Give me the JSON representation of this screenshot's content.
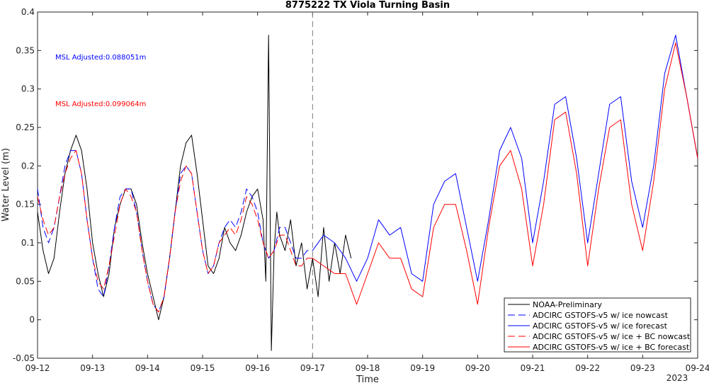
{
  "chart_data": {
    "type": "line",
    "title": "8775222 TX Viola Turning Basin",
    "xlabel": "Time",
    "ylabel": "Water Level (m)",
    "year_label": "2023",
    "xlim": [
      0,
      12
    ],
    "ylim": [
      -0.05,
      0.4
    ],
    "x_ticks": [
      "09-12",
      "09-13",
      "09-14",
      "09-15",
      "09-16",
      "09-17",
      "09-18",
      "09-19",
      "09-20",
      "09-21",
      "09-22",
      "09-23",
      "09-24"
    ],
    "y_ticks": [
      -0.05,
      0,
      0.05,
      0.1,
      0.15,
      0.2,
      0.25,
      0.3,
      0.35,
      0.4
    ],
    "forecast_start_x": 5,
    "grid": false,
    "legend_position": "bottom-right",
    "annotations": [
      {
        "text": "MSL Adjusted:0.088051m",
        "color": "#0000ff"
      },
      {
        "text": "MSL Adjusted:0.099064m",
        "color": "#ff0000"
      }
    ],
    "series": [
      {
        "name": "NOAA-Preliminary",
        "color": "#000000",
        "dash": false,
        "width": 1,
        "x": [
          0,
          0.1,
          0.2,
          0.3,
          0.4,
          0.5,
          0.6,
          0.7,
          0.8,
          0.9,
          1.0,
          1.1,
          1.2,
          1.3,
          1.4,
          1.5,
          1.6,
          1.7,
          1.8,
          1.9,
          2.0,
          2.1,
          2.2,
          2.3,
          2.4,
          2.5,
          2.6,
          2.7,
          2.8,
          2.9,
          3.0,
          3.1,
          3.2,
          3.3,
          3.4,
          3.5,
          3.6,
          3.7,
          3.8,
          3.9,
          4.0,
          4.1,
          4.15,
          4.2,
          4.25,
          4.3,
          4.35,
          4.4,
          4.5,
          4.6,
          4.7,
          4.8,
          4.9,
          5.0,
          5.1,
          5.2,
          5.3,
          5.4,
          5.5,
          5.6,
          5.7
        ],
        "y": [
          0.14,
          0.09,
          0.06,
          0.08,
          0.14,
          0.19,
          0.22,
          0.24,
          0.22,
          0.17,
          0.1,
          0.06,
          0.03,
          0.06,
          0.12,
          0.15,
          0.17,
          0.17,
          0.15,
          0.1,
          0.06,
          0.03,
          0.0,
          0.03,
          0.08,
          0.14,
          0.2,
          0.23,
          0.24,
          0.19,
          0.13,
          0.07,
          0.06,
          0.08,
          0.12,
          0.1,
          0.09,
          0.11,
          0.14,
          0.16,
          0.17,
          0.13,
          0.05,
          0.37,
          -0.04,
          0.09,
          0.14,
          0.11,
          0.09,
          0.13,
          0.07,
          0.1,
          0.04,
          0.08,
          0.03,
          0.12,
          0.05,
          0.1,
          0.06,
          0.11,
          0.08
        ]
      },
      {
        "name": "ADCIRC GSTOFS-v5 w/ ice nowcast",
        "color": "#0000ff",
        "dash": true,
        "width": 1,
        "x": [
          0,
          0.1,
          0.2,
          0.3,
          0.4,
          0.5,
          0.6,
          0.7,
          0.8,
          0.9,
          1.0,
          1.1,
          1.2,
          1.3,
          1.4,
          1.5,
          1.6,
          1.7,
          1.8,
          1.9,
          2.0,
          2.1,
          2.2,
          2.3,
          2.4,
          2.5,
          2.6,
          2.7,
          2.8,
          2.9,
          3.0,
          3.1,
          3.2,
          3.3,
          3.4,
          3.5,
          3.6,
          3.7,
          3.8,
          3.9,
          4.0,
          4.1,
          4.2,
          4.3,
          4.4,
          4.5,
          4.6,
          4.7,
          4.8,
          4.9,
          5.0
        ],
        "y": [
          0.17,
          0.12,
          0.1,
          0.12,
          0.16,
          0.2,
          0.22,
          0.22,
          0.19,
          0.13,
          0.08,
          0.04,
          0.03,
          0.07,
          0.12,
          0.16,
          0.17,
          0.17,
          0.14,
          0.09,
          0.05,
          0.02,
          0.01,
          0.03,
          0.08,
          0.14,
          0.19,
          0.2,
          0.19,
          0.14,
          0.09,
          0.06,
          0.07,
          0.1,
          0.12,
          0.13,
          0.12,
          0.14,
          0.17,
          0.16,
          0.14,
          0.1,
          0.08,
          0.09,
          0.12,
          0.12,
          0.1,
          0.08,
          0.08,
          0.09,
          0.09
        ]
      },
      {
        "name": "ADCIRC GSTOFS-v5 w/ ice forecast",
        "color": "#0000ff",
        "dash": false,
        "width": 1,
        "x": [
          5.0,
          5.2,
          5.4,
          5.6,
          5.8,
          6.0,
          6.2,
          6.4,
          6.6,
          6.8,
          7.0,
          7.2,
          7.4,
          7.6,
          7.8,
          8.0,
          8.2,
          8.4,
          8.6,
          8.8,
          9.0,
          9.2,
          9.4,
          9.6,
          9.8,
          10.0,
          10.2,
          10.4,
          10.6,
          10.8,
          11.0,
          11.2,
          11.4,
          11.6,
          11.8,
          12.0
        ],
        "y": [
          0.09,
          0.11,
          0.1,
          0.08,
          0.05,
          0.08,
          0.13,
          0.11,
          0.12,
          0.06,
          0.05,
          0.15,
          0.18,
          0.19,
          0.12,
          0.05,
          0.13,
          0.22,
          0.25,
          0.21,
          0.1,
          0.18,
          0.28,
          0.29,
          0.21,
          0.1,
          0.19,
          0.28,
          0.29,
          0.18,
          0.12,
          0.2,
          0.32,
          0.37,
          0.29,
          0.21
        ]
      },
      {
        "name": "ADCIRC GSTOFS-v5 w/ ice + BC nowcast",
        "color": "#ff0000",
        "dash": true,
        "width": 1,
        "x": [
          0,
          0.1,
          0.2,
          0.3,
          0.4,
          0.5,
          0.6,
          0.7,
          0.8,
          0.9,
          1.0,
          1.1,
          1.2,
          1.3,
          1.4,
          1.5,
          1.6,
          1.7,
          1.8,
          1.9,
          2.0,
          2.1,
          2.2,
          2.3,
          2.4,
          2.5,
          2.6,
          2.7,
          2.8,
          2.9,
          3.0,
          3.1,
          3.2,
          3.3,
          3.4,
          3.5,
          3.6,
          3.7,
          3.8,
          3.9,
          4.0,
          4.1,
          4.2,
          4.3,
          4.4,
          4.5,
          4.6,
          4.7,
          4.8,
          4.9,
          5.0
        ],
        "y": [
          0.16,
          0.13,
          0.11,
          0.12,
          0.16,
          0.19,
          0.21,
          0.22,
          0.19,
          0.13,
          0.08,
          0.05,
          0.04,
          0.07,
          0.11,
          0.15,
          0.17,
          0.16,
          0.14,
          0.09,
          0.05,
          0.02,
          0.01,
          0.03,
          0.08,
          0.14,
          0.18,
          0.2,
          0.19,
          0.14,
          0.09,
          0.06,
          0.07,
          0.1,
          0.11,
          0.12,
          0.11,
          0.13,
          0.16,
          0.15,
          0.13,
          0.1,
          0.08,
          0.09,
          0.11,
          0.11,
          0.09,
          0.07,
          0.07,
          0.08,
          0.08
        ]
      },
      {
        "name": "ADCIRC GSTOFS-v5 w/ ice + BC forecast",
        "color": "#ff0000",
        "dash": false,
        "width": 1,
        "x": [
          5.0,
          5.2,
          5.4,
          5.6,
          5.8,
          6.0,
          6.2,
          6.4,
          6.6,
          6.8,
          7.0,
          7.2,
          7.4,
          7.6,
          7.8,
          8.0,
          8.2,
          8.4,
          8.6,
          8.8,
          9.0,
          9.2,
          9.4,
          9.6,
          9.8,
          10.0,
          10.2,
          10.4,
          10.6,
          10.8,
          11.0,
          11.2,
          11.4,
          11.6,
          11.8,
          12.0
        ],
        "y": [
          0.08,
          0.07,
          0.06,
          0.06,
          0.02,
          0.06,
          0.1,
          0.08,
          0.08,
          0.04,
          0.03,
          0.12,
          0.15,
          0.15,
          0.09,
          0.02,
          0.12,
          0.2,
          0.22,
          0.17,
          0.07,
          0.15,
          0.26,
          0.27,
          0.19,
          0.07,
          0.17,
          0.25,
          0.26,
          0.15,
          0.09,
          0.18,
          0.3,
          0.36,
          0.29,
          0.21
        ]
      }
    ]
  }
}
